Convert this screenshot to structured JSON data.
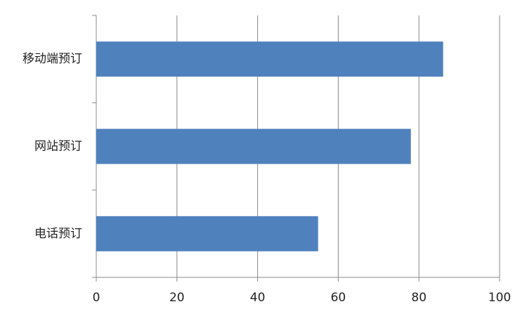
{
  "chart_data": {
    "type": "hbar",
    "categories": [
      "移动端预订",
      "网站预订",
      "电话预订"
    ],
    "values": [
      86,
      78,
      55
    ],
    "color": "#4f81bd",
    "xlim": [
      0,
      100
    ],
    "xticks": [
      0,
      20,
      40,
      60,
      80,
      100
    ],
    "grid": true
  }
}
